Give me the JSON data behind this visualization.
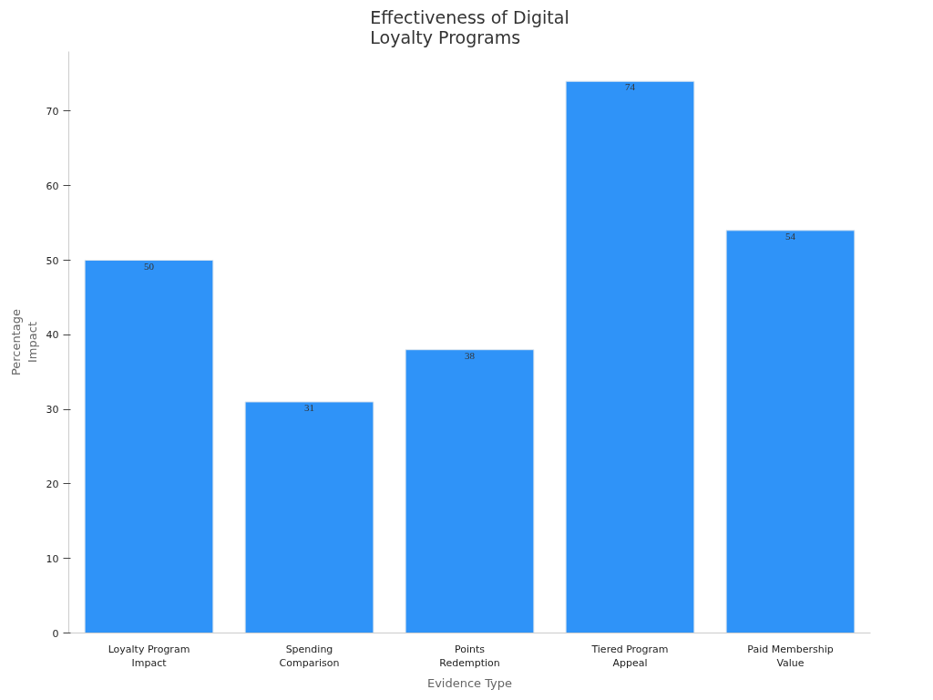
{
  "chart_data": {
    "type": "bar",
    "title": "Effectiveness of Digital\nLoyalty Programs",
    "xlabel": "Evidence Type",
    "ylabel": "Percentage\nImpact",
    "categories": [
      "Loyalty Program\nImpact",
      "Spending\nComparison",
      "Points\nRedemption",
      "Tiered Program\nAppeal",
      "Paid Membership\nValue"
    ],
    "values": [
      50,
      31,
      38,
      74,
      54
    ],
    "color": "#2f93f8",
    "ylim": [
      0,
      78
    ],
    "yticks": [
      0,
      10,
      20,
      30,
      40,
      50,
      60,
      70
    ],
    "grid": false,
    "data_labels": true
  }
}
